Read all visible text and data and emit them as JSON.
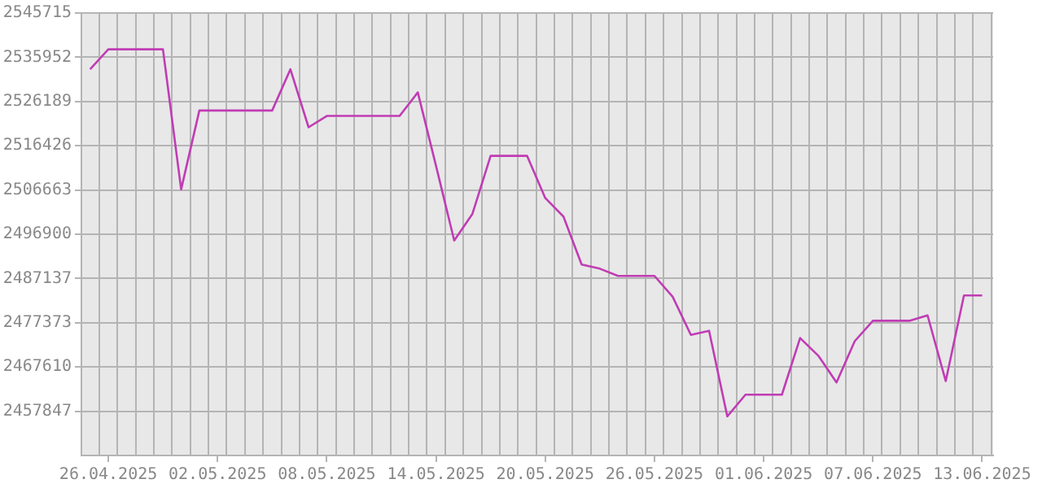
{
  "chart_data": {
    "type": "line",
    "x": [
      "2025-04-25",
      "2025-04-26",
      "2025-04-27",
      "2025-04-28",
      "2025-04-29",
      "2025-04-30",
      "2025-05-01",
      "2025-05-02",
      "2025-05-03",
      "2025-05-04",
      "2025-05-05",
      "2025-05-06",
      "2025-05-07",
      "2025-05-08",
      "2025-05-09",
      "2025-05-10",
      "2025-05-11",
      "2025-05-12",
      "2025-05-13",
      "2025-05-14",
      "2025-05-15",
      "2025-05-16",
      "2025-05-17",
      "2025-05-18",
      "2025-05-19",
      "2025-05-20",
      "2025-05-21",
      "2025-05-22",
      "2025-05-23",
      "2025-05-24",
      "2025-05-25",
      "2025-05-26",
      "2025-05-27",
      "2025-05-28",
      "2025-05-29",
      "2025-05-30",
      "2025-05-31",
      "2025-06-01",
      "2025-06-02",
      "2025-06-03",
      "2025-06-04",
      "2025-06-05",
      "2025-06-06",
      "2025-06-07",
      "2025-06-08",
      "2025-06-09",
      "2025-06-10",
      "2025-06-11",
      "2025-06-12",
      "2025-06-13"
    ],
    "series": [
      {
        "color": "#c03cb4",
        "values": [
          2533300,
          2537700,
          2537700,
          2537700,
          2537700,
          2506800,
          2524200,
          2524200,
          2524200,
          2524200,
          2524200,
          2533300,
          2520500,
          2523000,
          2523000,
          2523000,
          2523000,
          2523000,
          2528200,
          2512000,
          2495500,
          2501400,
          2514200,
          2514200,
          2514200,
          2504900,
          2500800,
          2490200,
          2489300,
          2487700,
          2487700,
          2487700,
          2483100,
          2474700,
          2475600,
          2456700,
          2461500,
          2461500,
          2461500,
          2474000,
          2470100,
          2464200,
          2473300,
          2477800,
          2477800,
          2477800,
          2479000,
          2464500,
          2483400,
          2483400
        ]
      }
    ],
    "xlim": [
      "2025-04-24T12:30",
      "2025-06-13T14:30"
    ],
    "xticks": [
      {
        "value": "2025-04-26",
        "label": "26.04.2025"
      },
      {
        "value": "2025-05-02",
        "label": "02.05.2025"
      },
      {
        "value": "2025-05-08",
        "label": "08.05.2025"
      },
      {
        "value": "2025-05-14",
        "label": "14.05.2025"
      },
      {
        "value": "2025-05-20",
        "label": "20.05.2025"
      },
      {
        "value": "2025-05-26",
        "label": "26.05.2025"
      },
      {
        "value": "2025-06-01",
        "label": "01.06.2025"
      },
      {
        "value": "2025-06-07",
        "label": "07.06.2025"
      },
      {
        "value": "2025-06-13",
        "label": "13.06.2025"
      },
      {
        "value": "2025-04-25T12:00",
        "label": null
      },
      {
        "value": "2025-04-26T12:00",
        "label": null
      },
      {
        "value": "2025-04-27T12:00",
        "label": null
      },
      {
        "value": "2025-04-28T12:00",
        "label": null
      },
      {
        "value": "2025-04-29T12:00",
        "label": null
      },
      {
        "value": "2025-04-30T12:00",
        "label": null
      },
      {
        "value": "2025-05-01T12:00",
        "label": null
      },
      {
        "value": "2025-05-02T12:00",
        "label": null
      },
      {
        "value": "2025-05-03T12:00",
        "label": null
      },
      {
        "value": "2025-05-04T12:00",
        "label": null
      },
      {
        "value": "2025-05-05T12:00",
        "label": null
      },
      {
        "value": "2025-05-06T12:00",
        "label": null
      },
      {
        "value": "2025-05-07T12:00",
        "label": null
      },
      {
        "value": "2025-05-08T12:00",
        "label": null
      },
      {
        "value": "2025-05-09T12:00",
        "label": null
      },
      {
        "value": "2025-05-10T12:00",
        "label": null
      },
      {
        "value": "2025-05-11T12:00",
        "label": null
      },
      {
        "value": "2025-05-12T12:00",
        "label": null
      },
      {
        "value": "2025-05-13T12:00",
        "label": null
      },
      {
        "value": "2025-05-14T12:00",
        "label": null
      },
      {
        "value": "2025-05-15T12:00",
        "label": null
      },
      {
        "value": "2025-05-16T12:00",
        "label": null
      },
      {
        "value": "2025-05-17T12:00",
        "label": null
      },
      {
        "value": "2025-05-18T12:00",
        "label": null
      },
      {
        "value": "2025-05-19T12:00",
        "label": null
      },
      {
        "value": "2025-05-20T12:00",
        "label": null
      },
      {
        "value": "2025-05-21T12:00",
        "label": null
      },
      {
        "value": "2025-05-22T12:00",
        "label": null
      },
      {
        "value": "2025-05-23T12:00",
        "label": null
      },
      {
        "value": "2025-05-24T12:00",
        "label": null
      },
      {
        "value": "2025-05-25T12:00",
        "label": null
      },
      {
        "value": "2025-05-26T12:00",
        "label": null
      },
      {
        "value": "2025-05-27T12:00",
        "label": null
      },
      {
        "value": "2025-05-28T12:00",
        "label": null
      },
      {
        "value": "2025-05-29T12:00",
        "label": null
      },
      {
        "value": "2025-05-30T12:00",
        "label": null
      },
      {
        "value": "2025-05-31T12:00",
        "label": null
      },
      {
        "value": "2025-06-01T12:00",
        "label": null
      },
      {
        "value": "2025-06-02T12:00",
        "label": null
      },
      {
        "value": "2025-06-03T12:00",
        "label": null
      },
      {
        "value": "2025-06-04T12:00",
        "label": null
      },
      {
        "value": "2025-06-05T12:00",
        "label": null
      },
      {
        "value": "2025-06-06T12:00",
        "label": null
      },
      {
        "value": "2025-06-07T12:00",
        "label": null
      },
      {
        "value": "2025-06-08T12:00",
        "label": null
      },
      {
        "value": "2025-06-09T12:00",
        "label": null
      },
      {
        "value": "2025-06-10T12:00",
        "label": null
      },
      {
        "value": "2025-06-11T12:00",
        "label": null
      },
      {
        "value": "2025-06-12T12:00",
        "label": null
      },
      {
        "value": "2025-06-13T12:00",
        "label": null
      }
    ],
    "ylim": [
      2448084,
      2545715
    ],
    "yticks": [
      2457847,
      2467610,
      2477373,
      2487137,
      2496900,
      2506663,
      2516426,
      2526189,
      2535952,
      2545715
    ],
    "grid": true,
    "legend": false,
    "marker": "none",
    "line_style": "solid"
  }
}
